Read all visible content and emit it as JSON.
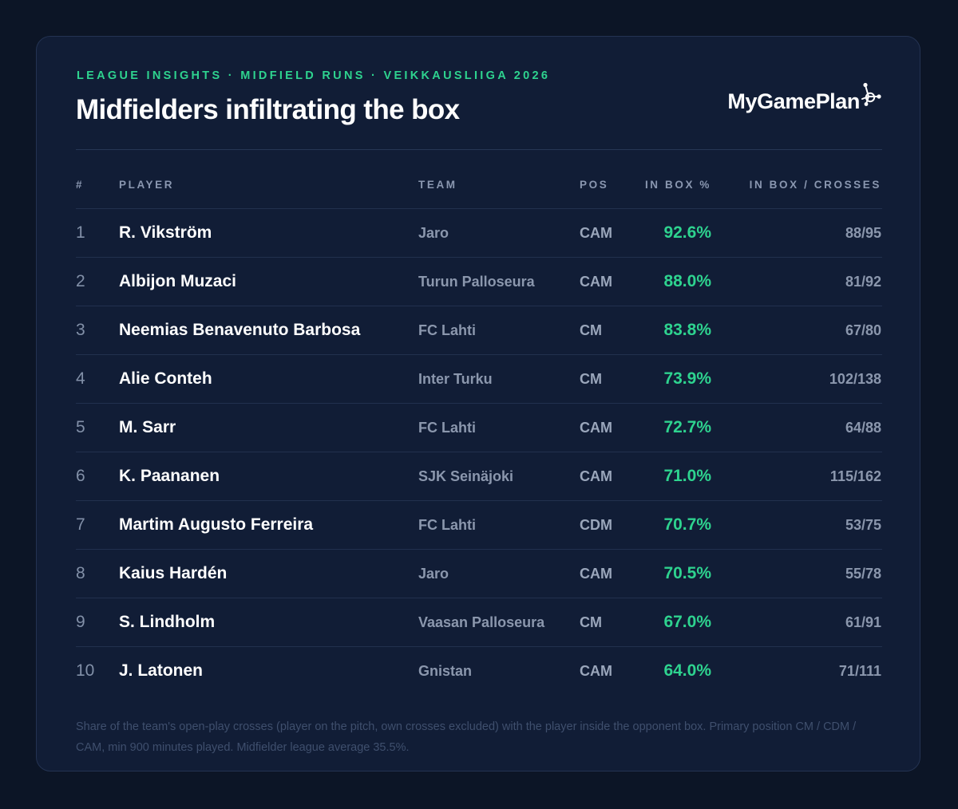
{
  "header": {
    "kicker": "LEAGUE INSIGHTS · MIDFIELD RUNS · VEIKKAUSLIIGA 2026",
    "title": "Midfielders infiltrating the box"
  },
  "brand": {
    "name": "MyGamePlan",
    "icon": "network-nodes-icon"
  },
  "table": {
    "columns": {
      "rank": "#",
      "player": "PLAYER",
      "team": "TEAM",
      "pos": "POS",
      "pct": "IN BOX %",
      "ratio": "IN BOX / CROSSES"
    },
    "rows": [
      {
        "rank": "1",
        "player": "R. Vikström",
        "team": "Jaro",
        "pos": "CAM",
        "pct": "92.6%",
        "ratio": "88/95"
      },
      {
        "rank": "2",
        "player": "Albijon Muzaci",
        "team": "Turun Palloseura",
        "pos": "CAM",
        "pct": "88.0%",
        "ratio": "81/92"
      },
      {
        "rank": "3",
        "player": "Neemias Benavenuto Barbosa",
        "team": "FC Lahti",
        "pos": "CM",
        "pct": "83.8%",
        "ratio": "67/80"
      },
      {
        "rank": "4",
        "player": "Alie Conteh",
        "team": "Inter Turku",
        "pos": "CM",
        "pct": "73.9%",
        "ratio": "102/138"
      },
      {
        "rank": "5",
        "player": "M. Sarr",
        "team": "FC Lahti",
        "pos": "CAM",
        "pct": "72.7%",
        "ratio": "64/88"
      },
      {
        "rank": "6",
        "player": "K. Paananen",
        "team": "SJK Seinäjoki",
        "pos": "CAM",
        "pct": "71.0%",
        "ratio": "115/162"
      },
      {
        "rank": "7",
        "player": "Martim Augusto Ferreira",
        "team": "FC Lahti",
        "pos": "CDM",
        "pct": "70.7%",
        "ratio": "53/75"
      },
      {
        "rank": "8",
        "player": "Kaius Hardén",
        "team": "Jaro",
        "pos": "CAM",
        "pct": "70.5%",
        "ratio": "55/78"
      },
      {
        "rank": "9",
        "player": "S. Lindholm",
        "team": "Vaasan Palloseura",
        "pos": "CM",
        "pct": "67.0%",
        "ratio": "61/91"
      },
      {
        "rank": "10",
        "player": "J. Latonen",
        "team": "Gnistan",
        "pos": "CAM",
        "pct": "64.0%",
        "ratio": "71/111"
      }
    ]
  },
  "footnote": "Share of the team's open-play crosses (player on the pitch, own crosses excluded) with the player inside the opponent box. Primary position CM / CDM / CAM, min 900 minutes played. Midfielder league average 35.5%.",
  "colors": {
    "accent": "#2ed38f",
    "background": "#0c1526",
    "card": "#111d36"
  }
}
